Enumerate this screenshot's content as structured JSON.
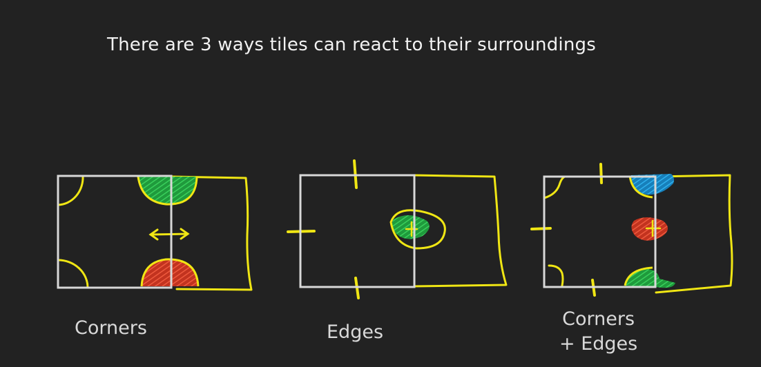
{
  "title": "There are 3 ways tiles can react to their surroundings",
  "captions": {
    "corners": "Corners",
    "edges": "Edges",
    "corners_edges_line1": "Corners",
    "corners_edges_line2": "+ Edges"
  },
  "colors": {
    "background": "#222222",
    "tile_outline": "#d8d8d8",
    "sketch": "#f0e614",
    "green": "#27b84a",
    "red": "#e0412e",
    "blue": "#1f9bd8"
  }
}
